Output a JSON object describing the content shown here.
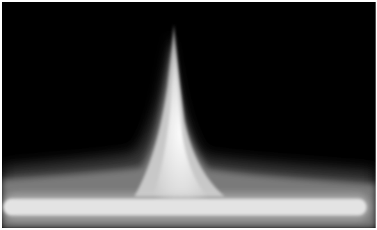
{
  "image": {
    "subject": "glowing-spike",
    "colors": {
      "background": "#000000",
      "border": "#ffffff",
      "glow_outer": "#3a3a3a",
      "glow_mid": "#7a7a7a",
      "glow_inner": "#c8c8c8",
      "glow_core": "#f4f4f4"
    }
  }
}
